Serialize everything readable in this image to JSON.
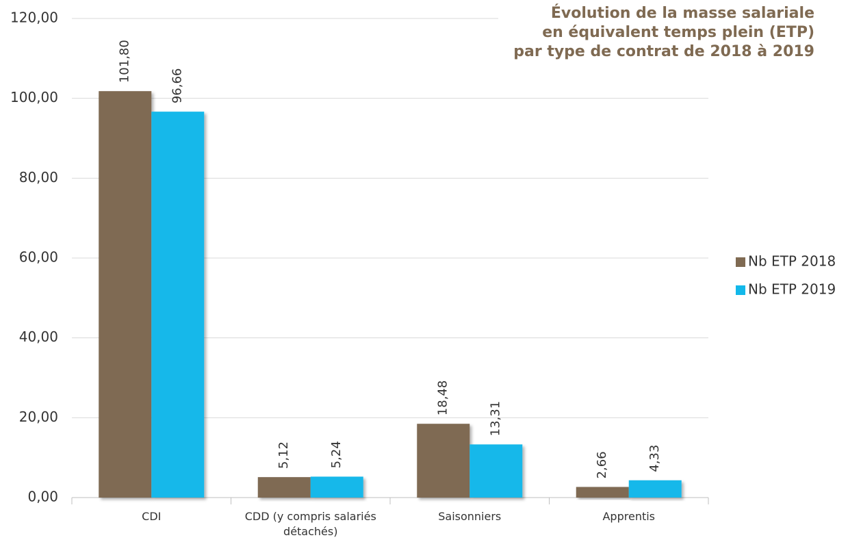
{
  "chart_data": {
    "type": "bar",
    "title": [
      "Évolution de la masse salariale",
      "en équivalent temps plein (ETP)",
      "par type de contrat de 2018 à 2019"
    ],
    "categories": [
      "CDI",
      "CDD (y compris salariés détachés)",
      "Saisonniers",
      "Apprentis"
    ],
    "series": [
      {
        "name": "Nb ETP 2018",
        "color": "#7f6a52",
        "values": [
          101.8,
          5.12,
          18.48,
          2.66
        ],
        "value_labels": [
          "101,80",
          "5,12",
          "18,48",
          "2,66"
        ]
      },
      {
        "name": "Nb ETP 2019",
        "color": "#12b8ea",
        "values": [
          96.66,
          5.24,
          13.31,
          4.33
        ],
        "value_labels": [
          "96,66",
          "5,24",
          "13,31",
          "4,33"
        ]
      }
    ],
    "ylim": [
      0,
      120
    ],
    "yticks": [
      {
        "value": 0,
        "label": "0,00"
      },
      {
        "value": 20,
        "label": "20,00"
      },
      {
        "value": 40,
        "label": "40,00"
      },
      {
        "value": 60,
        "label": "60,00"
      },
      {
        "value": 80,
        "label": "80,00"
      },
      {
        "value": 100,
        "label": "100,00"
      },
      {
        "value": 120,
        "label": "120,00"
      }
    ],
    "grid": true,
    "legend": "right"
  }
}
